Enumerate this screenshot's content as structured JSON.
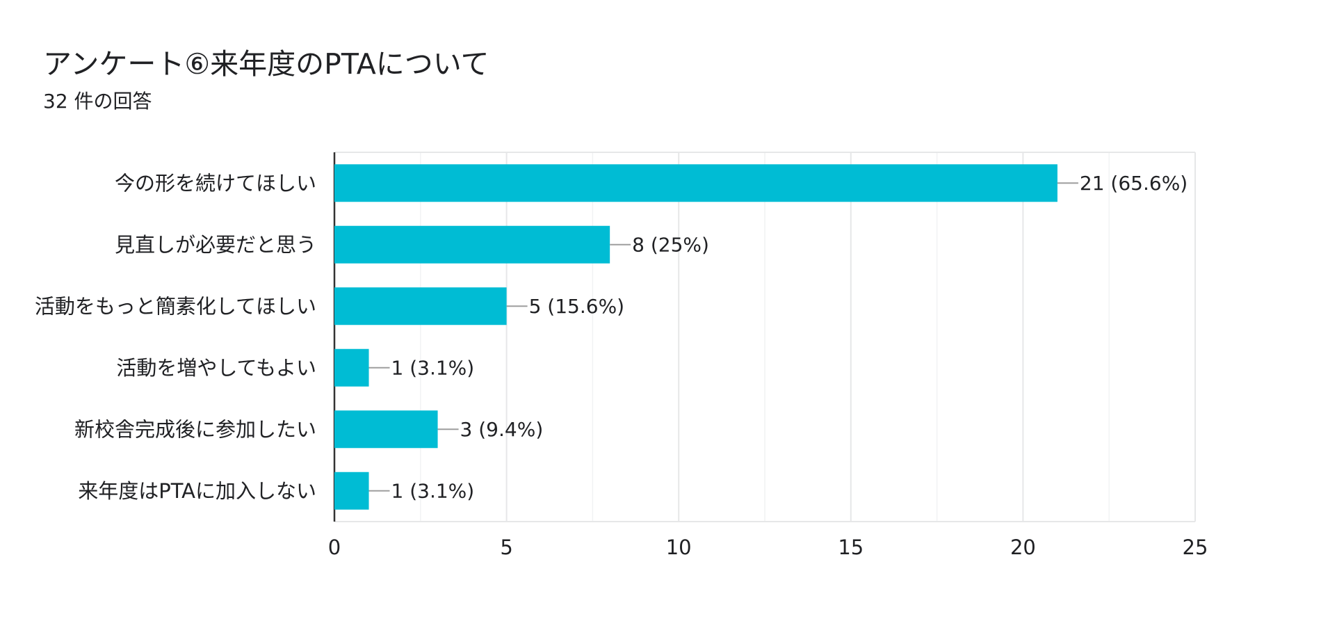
{
  "title": "アンケート⑥来年度のPTAについて",
  "subtitle": "32 件の回答",
  "chart_data": {
    "type": "bar",
    "orientation": "horizontal",
    "categories": [
      "今の形を続けてほしい",
      "見直しが必要だと思う",
      "活動をもっと簡素化してほしい",
      "活動を増やしてもよい",
      "新校舎完成後に参加したい",
      "来年度はPTAに加入しない"
    ],
    "values": [
      21,
      8,
      5,
      1,
      3,
      1
    ],
    "data_labels": [
      "21 (65.6%)",
      "8 (25%)",
      "5 (15.6%)",
      "1 (3.1%)",
      "3 (9.4%)",
      "1 (3.1%)"
    ],
    "xlim": [
      0,
      25
    ],
    "x_ticks": [
      0,
      5,
      10,
      15,
      20,
      25
    ],
    "grid": true,
    "bar_color": "#00bcd4",
    "title": "アンケート⑥来年度のPTAについて",
    "subtitle": "32 件の回答"
  }
}
